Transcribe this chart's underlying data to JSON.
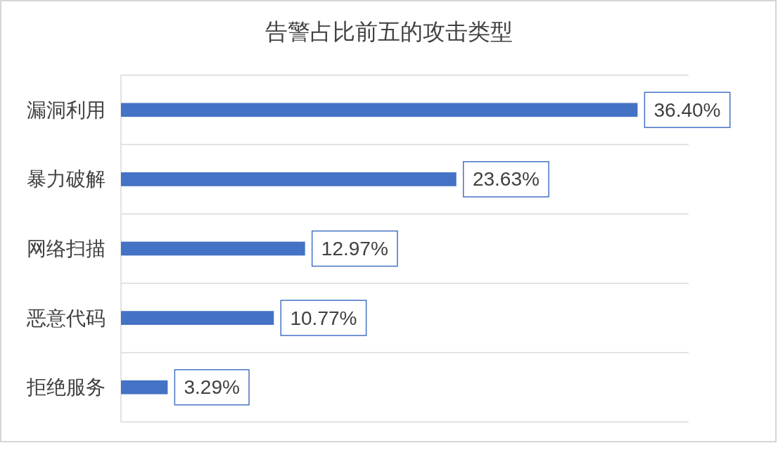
{
  "chart_data": {
    "type": "bar",
    "orientation": "horizontal",
    "title": "告警占比前五的攻击类型",
    "categories": [
      "漏洞利用",
      "暴力破解",
      "网络扫描",
      "恶意代码",
      "拒绝服务"
    ],
    "values": [
      36.4,
      23.63,
      12.97,
      10.77,
      3.29
    ],
    "value_labels": [
      "36.40%",
      "23.63%",
      "12.97%",
      "10.77%",
      "3.29%"
    ],
    "color": "#4472c4",
    "xlim": [
      0,
      40
    ],
    "grid": "y"
  }
}
